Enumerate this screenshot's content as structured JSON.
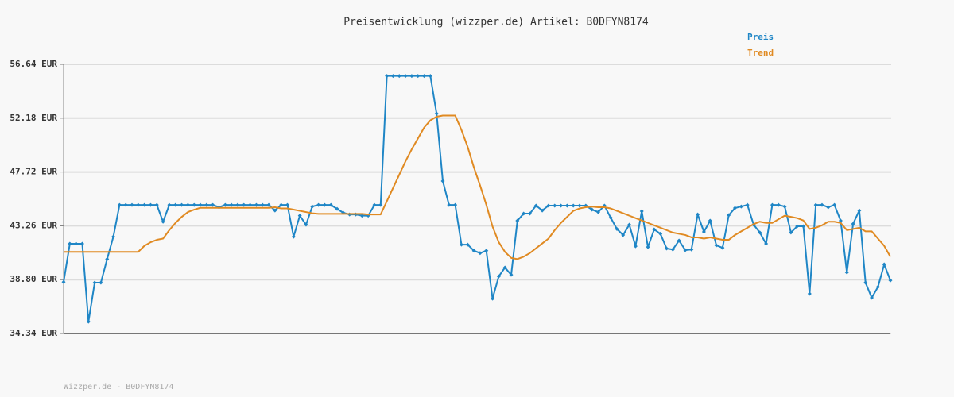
{
  "chart_data": {
    "type": "line",
    "title": "Preisentwicklung (wizzper.de) Artikel: B0DFYN8174",
    "source": "Wizzper.de - B0DFYN8174",
    "legend": "top-right",
    "grid": true,
    "ylim": [
      34.34,
      56.64
    ],
    "yticks": [
      {
        "value": 34.34,
        "label": "34.34 EUR"
      },
      {
        "value": 38.8,
        "label": "38.80 EUR"
      },
      {
        "value": 43.26,
        "label": "43.26 EUR"
      },
      {
        "value": 47.72,
        "label": "47.72 EUR"
      },
      {
        "value": 52.18,
        "label": "52.18 EUR"
      },
      {
        "value": 56.64,
        "label": "56.64 EUR"
      }
    ],
    "series": [
      {
        "name": "Preis",
        "color": "#1f86c6",
        "markers": true,
        "values": [
          38.6,
          41.77,
          41.77,
          41.77,
          35.32,
          38.55,
          38.55,
          40.5,
          42.36,
          44.99,
          44.99,
          44.99,
          44.99,
          44.99,
          44.99,
          44.99,
          43.6,
          44.99,
          44.99,
          44.99,
          44.99,
          44.99,
          44.99,
          44.99,
          44.99,
          44.8,
          44.99,
          44.99,
          44.99,
          44.99,
          44.99,
          44.99,
          44.99,
          44.99,
          44.53,
          44.99,
          44.99,
          42.36,
          44.1,
          43.35,
          44.86,
          44.99,
          44.99,
          44.99,
          44.66,
          44.34,
          44.2,
          44.2,
          44.1,
          44.1,
          44.99,
          44.99,
          55.68,
          55.68,
          55.68,
          55.68,
          55.68,
          55.68,
          55.68,
          55.68,
          52.56,
          46.97,
          44.99,
          44.99,
          41.7,
          41.7,
          41.2,
          41.0,
          41.2,
          37.23,
          39.07,
          39.8,
          39.2,
          43.68,
          44.27,
          44.27,
          44.93,
          44.53,
          44.93,
          44.93,
          44.93,
          44.93,
          44.93,
          44.93,
          44.93,
          44.6,
          44.4,
          44.93,
          43.94,
          43.0,
          42.5,
          43.35,
          41.57,
          44.47,
          41.5,
          42.96,
          42.6,
          41.38,
          41.3,
          42.04,
          41.25,
          41.3,
          44.2,
          42.76,
          43.68,
          41.64,
          41.44,
          44.14,
          44.73,
          44.86,
          44.99,
          43.35,
          42.7,
          41.77,
          44.99,
          44.99,
          44.86,
          42.7,
          43.22,
          43.22,
          37.63,
          44.99,
          44.99,
          44.8,
          44.99,
          43.68,
          39.4,
          43.42,
          44.53,
          38.55,
          37.3,
          38.2,
          40.06,
          38.74
        ]
      },
      {
        "name": "Trend",
        "color": "#e08a22",
        "markers": false,
        "values": [
          41.1,
          41.1,
          41.1,
          41.1,
          41.1,
          41.1,
          41.1,
          41.1,
          41.1,
          41.1,
          41.1,
          41.1,
          41.1,
          41.6,
          41.9,
          42.1,
          42.2,
          42.9,
          43.5,
          44.0,
          44.4,
          44.6,
          44.75,
          44.75,
          44.75,
          44.75,
          44.75,
          44.75,
          44.75,
          44.75,
          44.75,
          44.75,
          44.75,
          44.75,
          44.8,
          44.7,
          44.7,
          44.6,
          44.5,
          44.4,
          44.3,
          44.25,
          44.25,
          44.25,
          44.25,
          44.25,
          44.25,
          44.25,
          44.25,
          44.2,
          44.2,
          44.2,
          45.3,
          46.4,
          47.5,
          48.6,
          49.6,
          50.5,
          51.4,
          52.0,
          52.3,
          52.4,
          52.4,
          52.4,
          51.2,
          49.8,
          48.1,
          46.6,
          45.0,
          43.2,
          41.9,
          41.1,
          40.6,
          40.5,
          40.7,
          41.0,
          41.4,
          41.8,
          42.2,
          42.9,
          43.5,
          44.0,
          44.5,
          44.7,
          44.8,
          44.85,
          44.8,
          44.8,
          44.7,
          44.5,
          44.3,
          44.1,
          43.9,
          43.7,
          43.5,
          43.3,
          43.1,
          42.9,
          42.7,
          42.6,
          42.5,
          42.3,
          42.3,
          42.2,
          42.3,
          42.2,
          42.1,
          42.1,
          42.5,
          42.8,
          43.1,
          43.4,
          43.6,
          43.5,
          43.5,
          43.8,
          44.1,
          44.0,
          43.9,
          43.7,
          43.0,
          43.1,
          43.3,
          43.6,
          43.6,
          43.5,
          42.9,
          43.0,
          43.1,
          42.8,
          42.8,
          42.2,
          41.6,
          40.7
        ]
      }
    ]
  }
}
